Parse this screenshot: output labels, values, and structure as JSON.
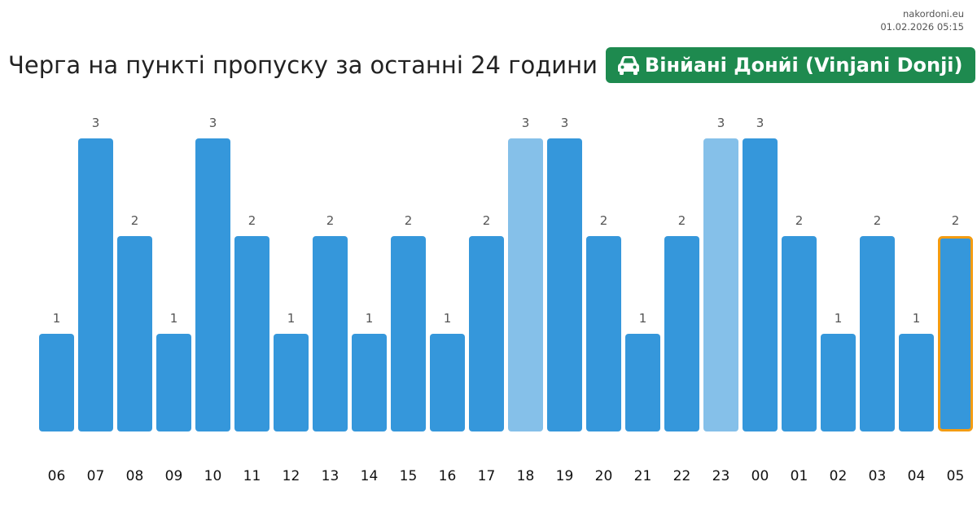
{
  "header": {
    "site": "nakordoni.eu",
    "timestamp": "01.02.2026 05:15",
    "title": "Черга на пункті пропуску за останні 24 години",
    "badge_label": "Вінйані Донйі (Vinjani Donji)",
    "badge_icon": "car-icon"
  },
  "colors": {
    "bar": "#3597db",
    "bar_light": "#85c0e9",
    "highlight_border": "#f39c12",
    "badge": "#1e8a4f"
  },
  "chart_data": {
    "type": "bar",
    "title": "Черга на пункті пропуску за останні 24 години",
    "xlabel": "",
    "ylabel": "",
    "ylim": [
      0,
      3
    ],
    "grid": false,
    "legend": "none",
    "categories": [
      "06",
      "07",
      "08",
      "09",
      "10",
      "11",
      "12",
      "13",
      "14",
      "15",
      "16",
      "17",
      "18",
      "19",
      "20",
      "21",
      "22",
      "23",
      "00",
      "01",
      "02",
      "03",
      "04",
      "05"
    ],
    "values": [
      1,
      3,
      2,
      1,
      3,
      2,
      1,
      2,
      1,
      2,
      1,
      2,
      3,
      3,
      2,
      1,
      2,
      3,
      3,
      2,
      1,
      2,
      1,
      2
    ],
    "light_categories": [
      "18",
      "23"
    ],
    "highlighted_category": "05"
  }
}
